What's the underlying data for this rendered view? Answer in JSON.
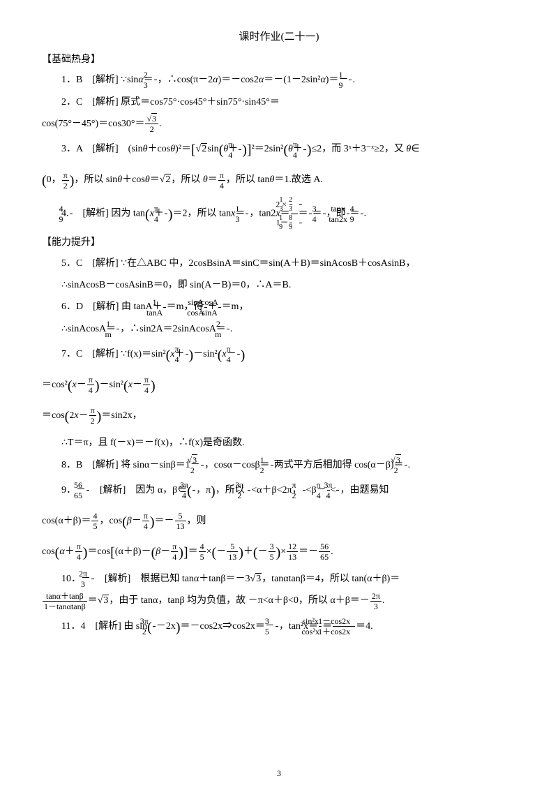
{
  "title": "课时作业(二十一)",
  "section1": "【基础热身】",
  "section2": "【能力提升】",
  "q1": {
    "num": "1．B　",
    "tag": "[解析]",
    "text1": " ∵sin",
    "alpha": "α",
    "eq1": "＝",
    "f1n": "2",
    "f1d": "3",
    "text2": "，∴cos(π－2",
    "text3": ")＝－cos2",
    "text4": "＝－(1－2sin²",
    "text5": ")＝－",
    "f2n": "1",
    "f2d": "9",
    "dot": "."
  },
  "q2": {
    "num": "2．C　",
    "tag": "[解析]",
    "line1": " 原式＝cos75°·cos45°＋sin75°·sin45°＝",
    "line2a": "cos(75°－45°)＝cos30°＝",
    "f1n": "√3",
    "f1d": "2",
    "dot": "."
  },
  "q3": {
    "num": "3．A　",
    "tag": "[解析]",
    "t1": "　(sin",
    "th": "θ",
    "t2": "＋cos",
    "t3": ")²＝",
    "br1a": "√2",
    "br1b": "sin",
    "br1c": "θ＋",
    "pi4n": "π",
    "pi4d": "4",
    "t4": "²＝2sin²",
    "t5": "≤2，而 3ˣ＋3⁻ˣ≥2，又 ",
    "t6": "∈",
    "rng_a": "0",
    "rng_b": "π",
    "rng_c": "2",
    "line2a": "，所以 sin",
    "line2b": "＋cos",
    "line2c": "＝",
    "sqrt2": "√2",
    "line2d": "，所以 ",
    "line2e": "＝",
    "pi4": "π",
    "four": "4",
    "line2f": "，所以 tan",
    "line2g": "＝1.故选 A."
  },
  "q4": {
    "num": "4.",
    "f1n": "4",
    "f1d": "9",
    "tag": "　[解析]",
    "t1": " 因为 tan",
    "paren_in1": "x＋",
    "pin": "π",
    "pid": "4",
    "t2": "＝2，所以 tan",
    "x": "x",
    "t3": "＝",
    "f2n": "1",
    "f2d": "3",
    "t4": "，tan2",
    "t5": "＝",
    "big_n1": "2 × ",
    "big_n1f_n": "1",
    "big_n1f_d": "3",
    "big_d1": "1－",
    "big_d1f_n": "1",
    "big_d1f_d": "9",
    "eq2": "＝",
    "f3an": "2",
    "f3ad": "3",
    "f3bn": "8",
    "f3bd": "9",
    "eq3": "＝",
    "f4n": "3",
    "f4d": "4",
    "t6": "，即",
    "f5n": "tanx",
    "f5d": "tan2x",
    "eq4": "＝",
    "f6n": "4",
    "f6d": "9",
    "dot": "."
  },
  "q5": {
    "num": "5．C　",
    "tag": "[解析]",
    "l1": " ∵在△ABC 中，2cosBsinA＝sinC＝sin(A＋B)＝sinAcosB＋cosAsinB，",
    "l2": "∴sinAcosB－cosAsinB＝0，即 sin(A－B)＝0，∴A＝B."
  },
  "q6": {
    "num": "6．D　",
    "tag": "[解析]",
    "l1a": " 由 tanA＋",
    "f1n": "1",
    "f1d": "tanA",
    "l1b": "＝m，得",
    "f2n": "sinA",
    "f2d": "cosA",
    "plus": "＋",
    "f3n": "cosA",
    "f3d": "sinA",
    "l1c": "＝m，",
    "l2a": "∴sinAcosA＝",
    "f4n": "1",
    "f4d": "m",
    "l2b": "，∴sin2A＝2sinAcosA＝",
    "f5n": "2",
    "f5d": "m",
    "dot": "."
  },
  "q7": {
    "num": "7．C　",
    "tag": "[解析]",
    "l1a": " ∵f(x)＝sin²",
    "p1a": "x＋",
    "pin": "π",
    "pid": "4",
    "l1b": "－sin²",
    "p2a": "x－",
    "l2a": "＝cos²",
    "l2b": "－sin²",
    "l3a": "＝cos",
    "p3a": "2x－",
    "pin2": "π",
    "pid2": "2",
    "l3b": "＝sin2x，",
    "l4": "∴T＝π，且 f(－x)＝－f(x)，∴f(x)是奇函数."
  },
  "q8": {
    "num": "8．B　",
    "tag": "[解析]",
    "t1": " 将 sinα－sinβ＝1－",
    "f1n": "√3",
    "f1d": "2",
    "t2": "，cosα－cosβ＝",
    "f2n": "1",
    "f2d": "2",
    "t3": "两式平方后相加得 cos(α－β)＝",
    "f3n": "√3",
    "f3d": "2",
    "dot": "."
  },
  "q9": {
    "num": "9．－",
    "f0n": "56",
    "f0d": "65",
    "tag": "　[解析]",
    "t1": "　因为 α，β∈",
    "rng_an": "3π",
    "rng_ad": "4",
    "rng_b": "π",
    "t2": "，所以 ",
    "f1n": "3π",
    "f1d": "2",
    "t3": "<α＋β<2π，",
    "f2n": "π",
    "f2d": "2",
    "t4": "<β－",
    "f3n": "π",
    "f3d": "4",
    "t5": "<",
    "f4n": "3π",
    "f4d": "4",
    "t6": "，由题易知",
    "l2a": "cos(α＋β)＝",
    "f5n": "4",
    "f5d": "5",
    "l2b": "，cos",
    "p1a": "β－",
    "pin": "π",
    "pid": "4",
    "l2c": "＝－",
    "f6n": "5",
    "f6d": "13",
    "l2d": "，则",
    "l3a": "cos",
    "p2a": "α＋",
    "l3b": "＝cos",
    "l3c": "(α＋β)－",
    "p3a": "β－",
    "l3d": "＝",
    "f7n": "4",
    "f7d": "5",
    "l3e": "×",
    "l3f": "－",
    "f8n": "5",
    "f8d": "13",
    "l3g": "＋",
    "l3h": "－",
    "f9n": "3",
    "f9d": "5",
    "l3i": "×",
    "f10n": "12",
    "f10d": "13",
    "l3j": "＝－",
    "f11n": "56",
    "f11d": "65",
    "dot": "."
  },
  "q10": {
    "num": "10．－",
    "f0n": "2π",
    "f0d": "3",
    "tag": "　[解析]",
    "t1": "　根据已知 tanα＋tanβ＝－3",
    "sqrt3": "√3",
    "t2": "，tanαtanβ＝4，所以 tan(α＋β)＝",
    "fbig_n": "tanα＋tanβ",
    "fbig_d": "1－tanαtanβ",
    "t3": "＝",
    "sqrt3b": "√3",
    "t4": "，由于 tanα，tanβ 均为负值，故 －π<α＋β<0，所以 α＋β＝－",
    "f1n": "2π",
    "f1d": "3",
    "dot": "."
  },
  "q11": {
    "num": "11．4　",
    "tag": "[解析]",
    "t1": " 由 sin",
    "p1an": "3π",
    "p1ad": "2",
    "p1b": "－2x",
    "t2": "＝－cos2x⇒cos2x＝－",
    "f1n": "3",
    "f1d": "5",
    "t3": "，tan²x＝",
    "f2n": "sin²x",
    "f2d": "cos²x",
    "t4": "＝",
    "f3n": "1－cos2x",
    "f3d": "1＋cos2x",
    "t5": "＝4."
  },
  "pagenum": "3"
}
